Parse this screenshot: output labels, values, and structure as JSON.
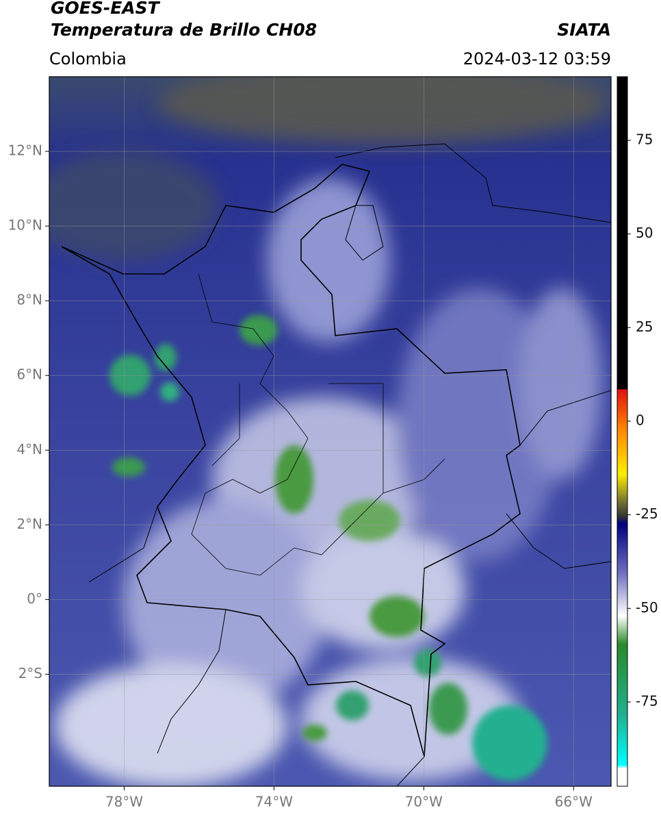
{
  "header": {
    "title": "GOES-EAST",
    "subtitle": "Temperatura de Brillo CH08",
    "region": "Colombia",
    "source": "SIATA",
    "datetime": "2024-03-12 03:59"
  },
  "map": {
    "xlim": [
      -80,
      -65
    ],
    "ylim": [
      -5,
      14
    ],
    "xticks": [
      {
        "value": -78,
        "label": "78°W"
      },
      {
        "value": -74,
        "label": "74°W"
      },
      {
        "value": -70,
        "label": "70°W"
      },
      {
        "value": -66,
        "label": "66°W"
      }
    ],
    "yticks": [
      {
        "value": 12,
        "label": "12°N"
      },
      {
        "value": 10,
        "label": "10°N"
      },
      {
        "value": 8,
        "label": "8°N"
      },
      {
        "value": 6,
        "label": "6°N"
      },
      {
        "value": 4,
        "label": "4°N"
      },
      {
        "value": 2,
        "label": "2°N"
      },
      {
        "value": 0,
        "label": "0°"
      },
      {
        "value": -2,
        "label": "2°S"
      }
    ],
    "grid": true
  },
  "colorbar": {
    "lim": [
      -97.5,
      92
    ],
    "ticks": [
      75,
      50,
      25,
      0,
      -25,
      -50,
      -75
    ]
  }
}
